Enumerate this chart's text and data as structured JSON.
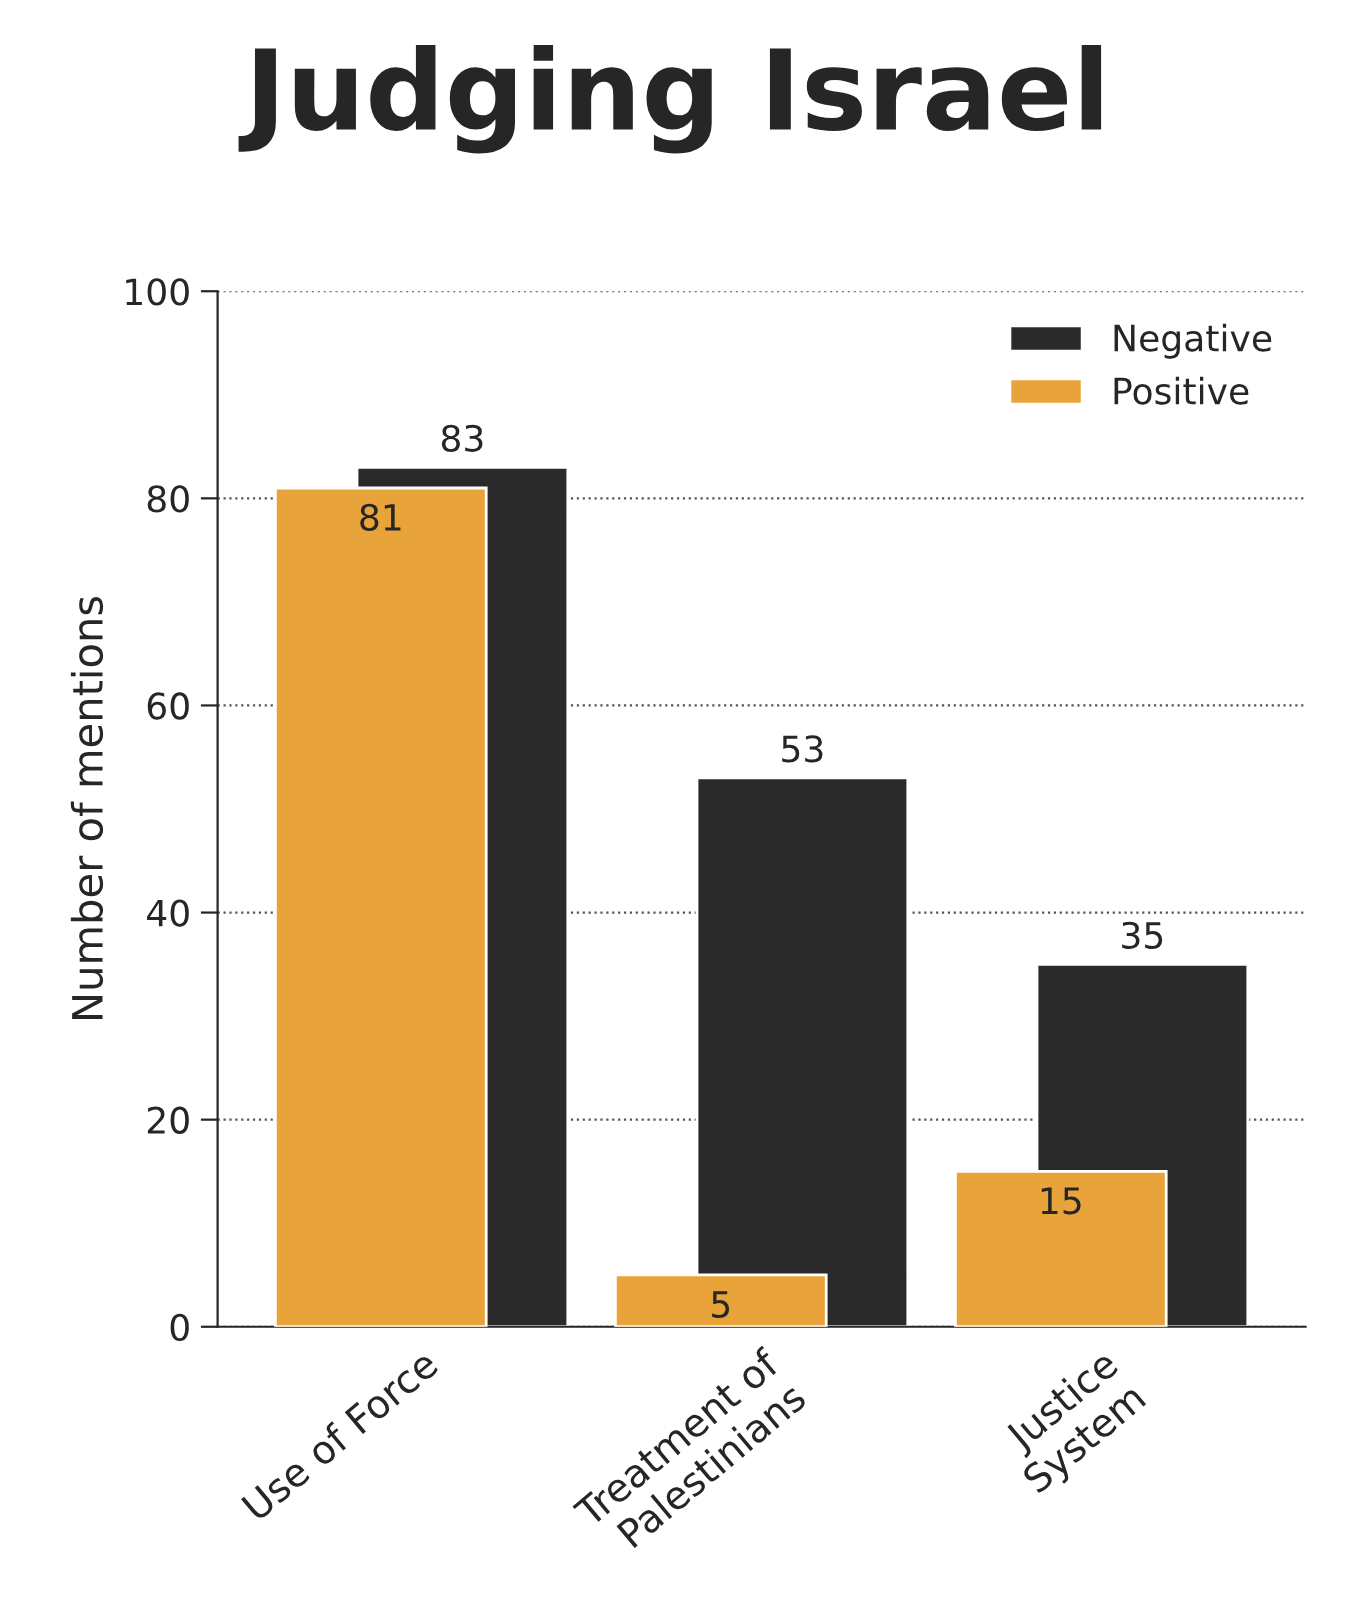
{
  "chart_data": {
    "type": "bar",
    "title": "Judging Israel",
    "ylabel": "Number of mentions",
    "categories": [
      "Use of Force",
      "Treatment of\nPalestinians",
      "Justice\nSystem"
    ],
    "series": [
      {
        "name": "Negative",
        "color": "#2a2a2a",
        "values": [
          83,
          53,
          35
        ]
      },
      {
        "name": "Positive",
        "color": "#e8a33a",
        "values": [
          81,
          5,
          15
        ]
      }
    ],
    "ylim": [
      0,
      100
    ],
    "yticks": [
      0,
      20,
      40,
      60,
      80,
      100
    ],
    "grid": "y",
    "legend": "top right",
    "data_labels": true
  }
}
